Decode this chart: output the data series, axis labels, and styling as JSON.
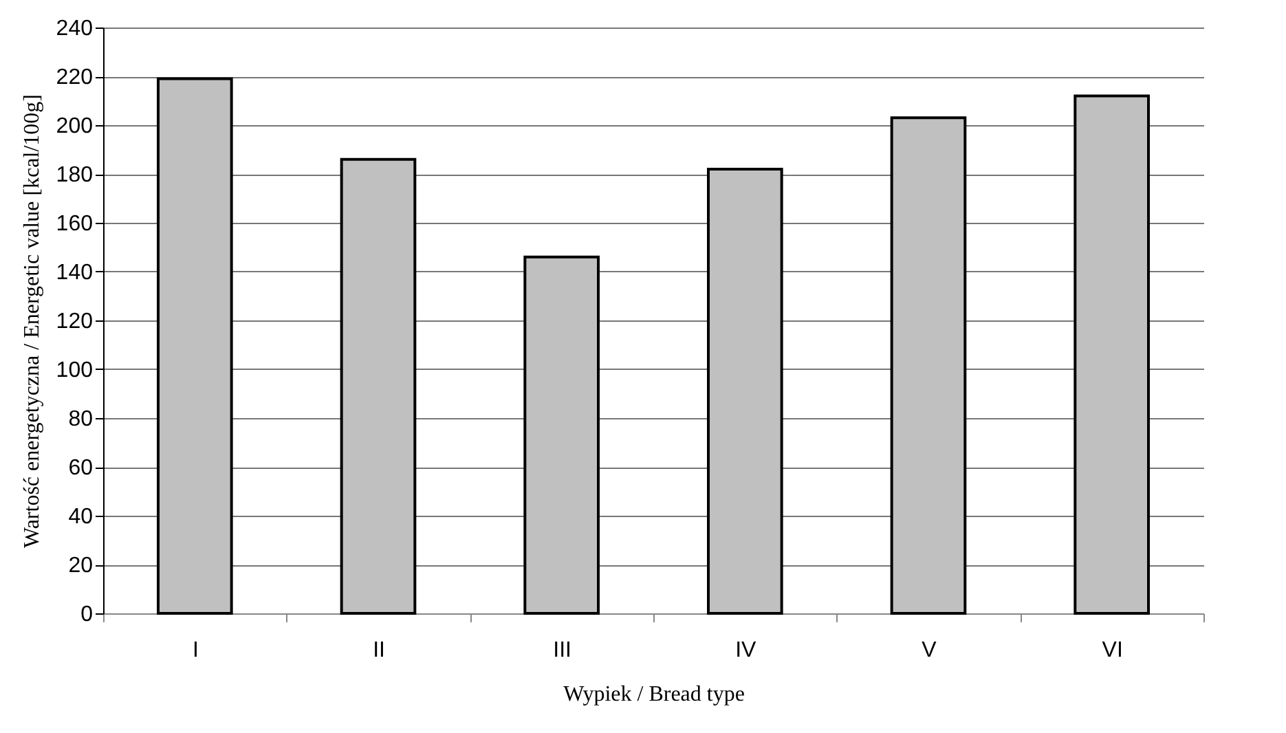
{
  "chart_data": {
    "type": "bar",
    "xlabel": "Wypiek / Bread type",
    "ylabel": "Wartość energetyczna / Energetic value [kcal/100g]",
    "categories": [
      "I",
      "II",
      "III",
      "IV",
      "V",
      "VI"
    ],
    "values": [
      219,
      186,
      146,
      182,
      203,
      212
    ],
    "color": "#c0c0c0",
    "ylim": [
      0,
      240
    ],
    "yticks": [
      0,
      20,
      40,
      60,
      80,
      100,
      120,
      140,
      160,
      180,
      200,
      220,
      240
    ],
    "grid": "y"
  }
}
